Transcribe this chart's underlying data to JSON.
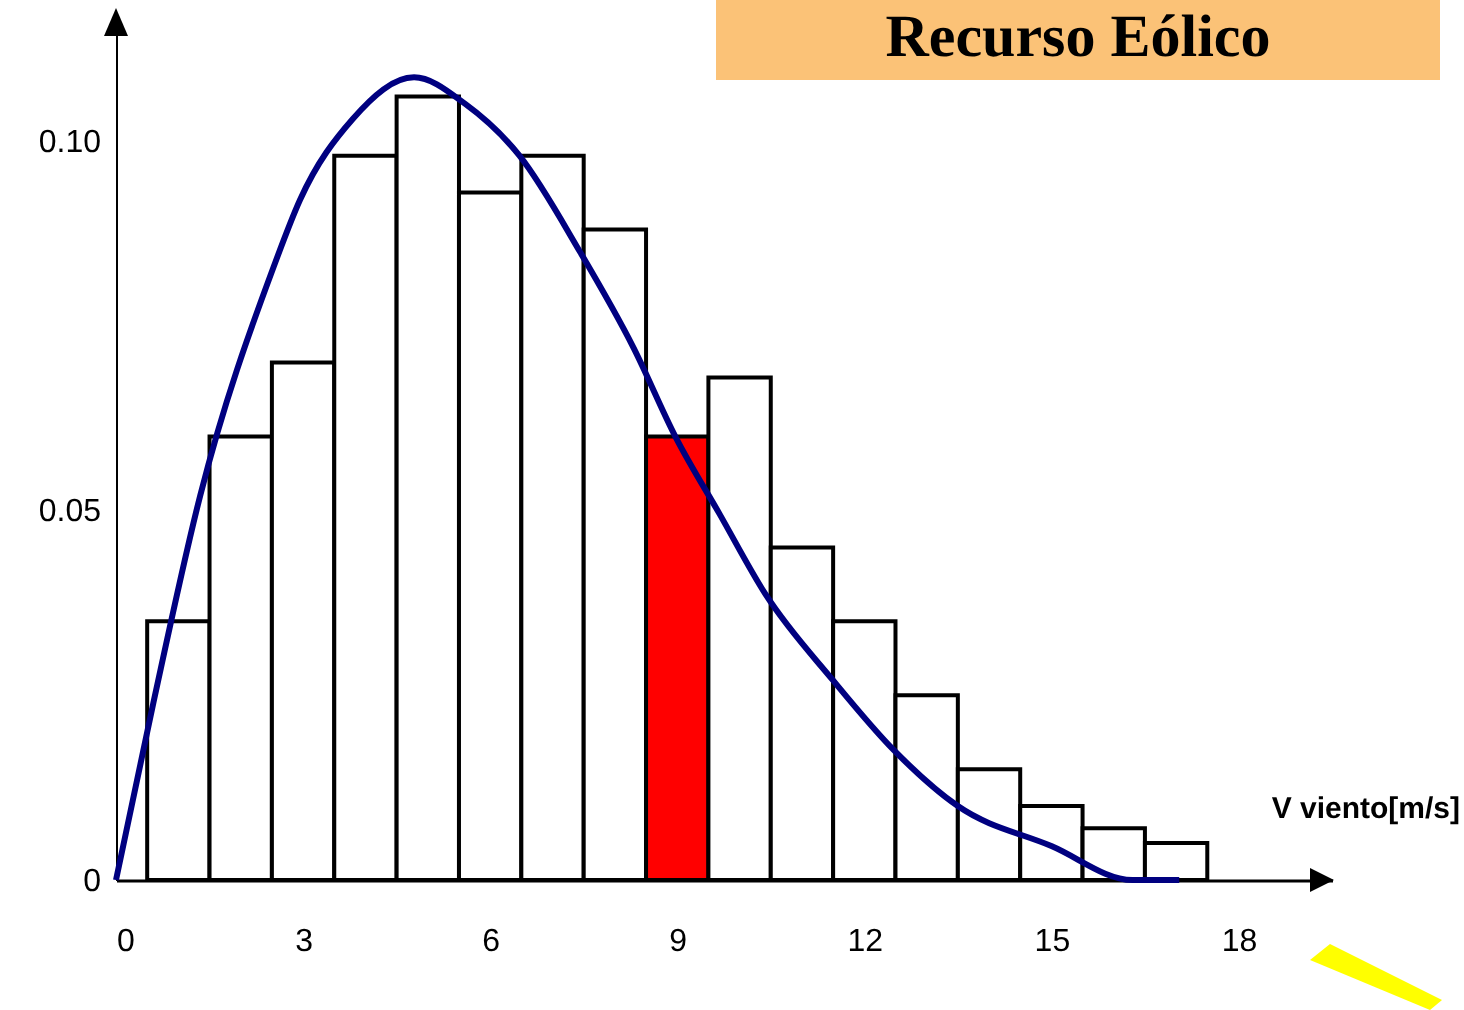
{
  "chart_data": {
    "type": "histogram",
    "title": "Recurso Eólico",
    "xlabel": "V viento[m/s]",
    "bins": [
      0.5,
      1.5,
      2.5,
      3.5,
      4.5,
      5.5,
      6.5,
      7.5,
      8.5,
      9.5,
      10.5,
      11.5,
      12.5,
      13.5,
      14.5,
      15.5,
      16.5,
      17.5
    ],
    "values": [
      0.035,
      0.06,
      0.07,
      0.098,
      0.106,
      0.093,
      0.098,
      0.088,
      0.06,
      0.068,
      0.045,
      0.035,
      0.025,
      0.015,
      0.01,
      0.007,
      0.005
    ],
    "colors": [
      "#ffffff",
      "#ffffff",
      "#ffffff",
      "#ffffff",
      "#ffffff",
      "#ffffff",
      "#ffffff",
      "#ffffff",
      "#ff0000",
      "#ffffff",
      "#ffffff",
      "#ffffff",
      "#ffffff",
      "#ffffff",
      "#ffffff",
      "#ffffff",
      "#ffffff"
    ],
    "series": [
      {
        "type": "line",
        "color": "#000080",
        "x": [
          0,
          0.6,
          1.35,
          2.53,
          2.95,
          3.8,
          4.78,
          5.6,
          6.47,
          7.44,
          8.3,
          8.97,
          9.68,
          10.42,
          11.5,
          12.47,
          13.5,
          15.0,
          16.3,
          17.05
        ],
        "values": [
          0,
          0.024,
          0.052,
          0.083,
          0.092,
          0.103,
          0.1086,
          0.105,
          0.098,
          0.085,
          0.072,
          0.06,
          0.0495,
          0.0386,
          0.027,
          0.0176,
          0.01,
          0.0046,
          0,
          0
        ]
      }
    ],
    "xlim": [
      0,
      19.5
    ],
    "xticks": [
      0,
      3,
      6,
      9,
      12,
      15,
      18
    ],
    "ylim": [
      0,
      0.115
    ],
    "yticks": [
      0,
      0.05,
      {
        "value": 0.1,
        "label": "0.10"
      }
    ],
    "grid": false
  }
}
